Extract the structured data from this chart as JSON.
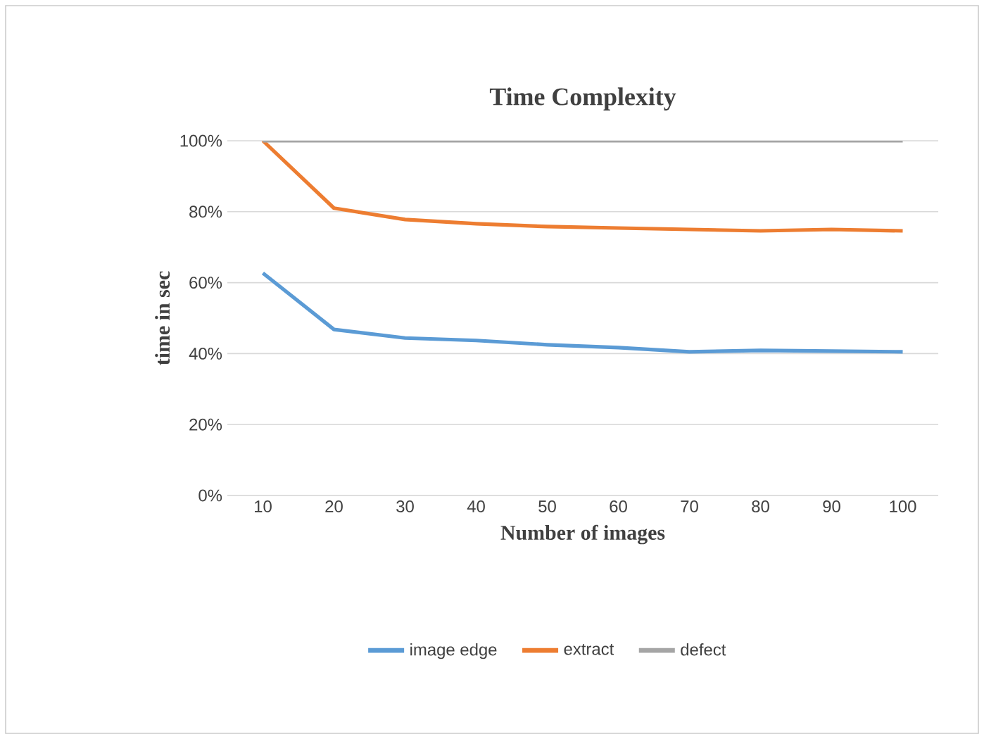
{
  "chart_data": {
    "type": "line",
    "title": "Time Complexity",
    "xlabel": "Number of  images",
    "ylabel": "time in sec",
    "categories": [
      "10",
      "20",
      "30",
      "40",
      "50",
      "60",
      "70",
      "80",
      "90",
      "100"
    ],
    "series": [
      {
        "name": "image edge",
        "color": "#5b9bd5",
        "values": [
          62.7,
          46.8,
          44.4,
          43.7,
          42.5,
          41.7,
          40.5,
          40.9,
          40.7,
          40.5
        ]
      },
      {
        "name": "extract",
        "color": "#ed7d31",
        "values": [
          100,
          81,
          77.8,
          76.6,
          75.8,
          75.4,
          75,
          74.6,
          75,
          74.6
        ]
      },
      {
        "name": "defect",
        "color": "#a5a5a5",
        "values": [
          100,
          100,
          100,
          100,
          100,
          100,
          100,
          100,
          100,
          100
        ]
      }
    ],
    "ylim": [
      0,
      100
    ],
    "yticks": [
      {
        "value": 0,
        "label": "0%"
      },
      {
        "value": 20,
        "label": "20%"
      },
      {
        "value": 40,
        "label": "40%"
      },
      {
        "value": 60,
        "label": "60%"
      },
      {
        "value": 80,
        "label": "80%"
      },
      {
        "value": 100,
        "label": "100%"
      }
    ],
    "grid": "y",
    "legend": "bottom",
    "marker": "none",
    "line_style": "solid"
  }
}
